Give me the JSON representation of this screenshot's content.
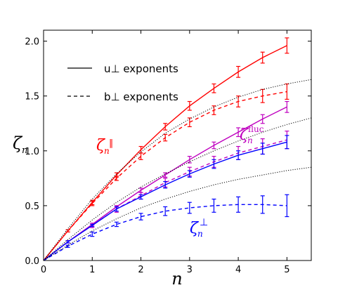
{
  "chart_data": {
    "type": "line",
    "xlabel": "n",
    "ylabel": "ζn",
    "xlim": [
      0,
      5.5
    ],
    "ylim": [
      0,
      2.1
    ],
    "xticks": [
      "0",
      "1",
      "2",
      "3",
      "4",
      "5"
    ],
    "yticks": [
      "0.0",
      "0.5",
      "1.0",
      "1.5",
      "2.0"
    ],
    "grid": false,
    "legend": {
      "position": "top-left",
      "entries": [
        {
          "label": "u⊥ exponents",
          "style": "solid"
        },
        {
          "label": "b⊥ exponents",
          "style": "dashed"
        }
      ]
    },
    "annotations": [
      {
        "text": "ζn∥",
        "color": "#ff0000"
      },
      {
        "text": "ζnfluc",
        "color": "#bf00bf"
      },
      {
        "text": "ζn⊥",
        "color": "#0000ff"
      }
    ],
    "x": [
      0,
      0.5,
      1,
      1.5,
      2,
      2.5,
      3,
      3.5,
      4,
      4.5,
      5
    ],
    "series": [
      {
        "color": "#ff0000",
        "style": "solid",
        "values": [
          0,
          0.27,
          0.53,
          0.78,
          1.01,
          1.22,
          1.41,
          1.57,
          1.72,
          1.85,
          1.96
        ],
        "errors": [
          0,
          0.01,
          0.02,
          0.02,
          0.03,
          0.03,
          0.04,
          0.04,
          0.05,
          0.05,
          0.07
        ]
      },
      {
        "color": "#ff0000",
        "style": "dashed",
        "values": [
          0,
          0.27,
          0.52,
          0.75,
          0.95,
          1.12,
          1.26,
          1.37,
          1.45,
          1.5,
          1.54
        ],
        "errors": [
          0,
          0.01,
          0.02,
          0.02,
          0.03,
          0.03,
          0.04,
          0.04,
          0.05,
          0.06,
          0.07
        ]
      },
      {
        "color": "#bf00bf",
        "style": "solid",
        "values": [
          0,
          0.17,
          0.33,
          0.49,
          0.64,
          0.78,
          0.92,
          1.05,
          1.17,
          1.29,
          1.4
        ],
        "errors": [
          0,
          0.01,
          0.01,
          0.01,
          0.02,
          0.02,
          0.03,
          0.03,
          0.04,
          0.04,
          0.05
        ]
      },
      {
        "color": "#bf00bf",
        "style": "dashed",
        "values": [
          0,
          0.17,
          0.32,
          0.47,
          0.59,
          0.71,
          0.81,
          0.9,
          0.98,
          1.04,
          1.1
        ],
        "errors": [
          0,
          0.01,
          0.02,
          0.03,
          0.03,
          0.04,
          0.04,
          0.05,
          0.06,
          0.07,
          0.08
        ]
      },
      {
        "color": "#0000ff",
        "style": "solid",
        "values": [
          0,
          0.17,
          0.32,
          0.47,
          0.58,
          0.69,
          0.79,
          0.88,
          0.96,
          1.02,
          1.08
        ],
        "errors": [
          0,
          0.01,
          0.01,
          0.02,
          0.02,
          0.03,
          0.03,
          0.04,
          0.04,
          0.05,
          0.06
        ]
      },
      {
        "color": "#0000ff",
        "style": "dashed",
        "values": [
          0,
          0.13,
          0.24,
          0.33,
          0.4,
          0.45,
          0.48,
          0.5,
          0.51,
          0.51,
          0.5
        ],
        "errors": [
          0,
          0.01,
          0.02,
          0.02,
          0.03,
          0.04,
          0.05,
          0.06,
          0.07,
          0.08,
          0.1
        ]
      },
      {
        "color": "#000000",
        "style": "dotted",
        "x": [
          0,
          0.5,
          1,
          1.5,
          2,
          2.5,
          3,
          3.5,
          4,
          4.5,
          5,
          5.5
        ],
        "values": [
          0,
          0.29,
          0.56,
          0.79,
          0.99,
          1.16,
          1.29,
          1.4,
          1.49,
          1.56,
          1.61,
          1.65
        ]
      },
      {
        "color": "#000000",
        "style": "dotted",
        "x": [
          0,
          0.5,
          1,
          1.5,
          2,
          2.5,
          3,
          3.5,
          4,
          4.5,
          5,
          5.5
        ],
        "values": [
          0,
          0.19,
          0.37,
          0.53,
          0.67,
          0.79,
          0.9,
          1.0,
          1.09,
          1.17,
          1.24,
          1.3
        ]
      },
      {
        "color": "#000000",
        "style": "dotted",
        "x": [
          0,
          0.5,
          1,
          1.5,
          2,
          2.5,
          3,
          3.5,
          4,
          4.5,
          5,
          5.5
        ],
        "values": [
          0,
          0.14,
          0.27,
          0.38,
          0.48,
          0.56,
          0.63,
          0.69,
          0.74,
          0.78,
          0.82,
          0.85
        ]
      }
    ]
  }
}
